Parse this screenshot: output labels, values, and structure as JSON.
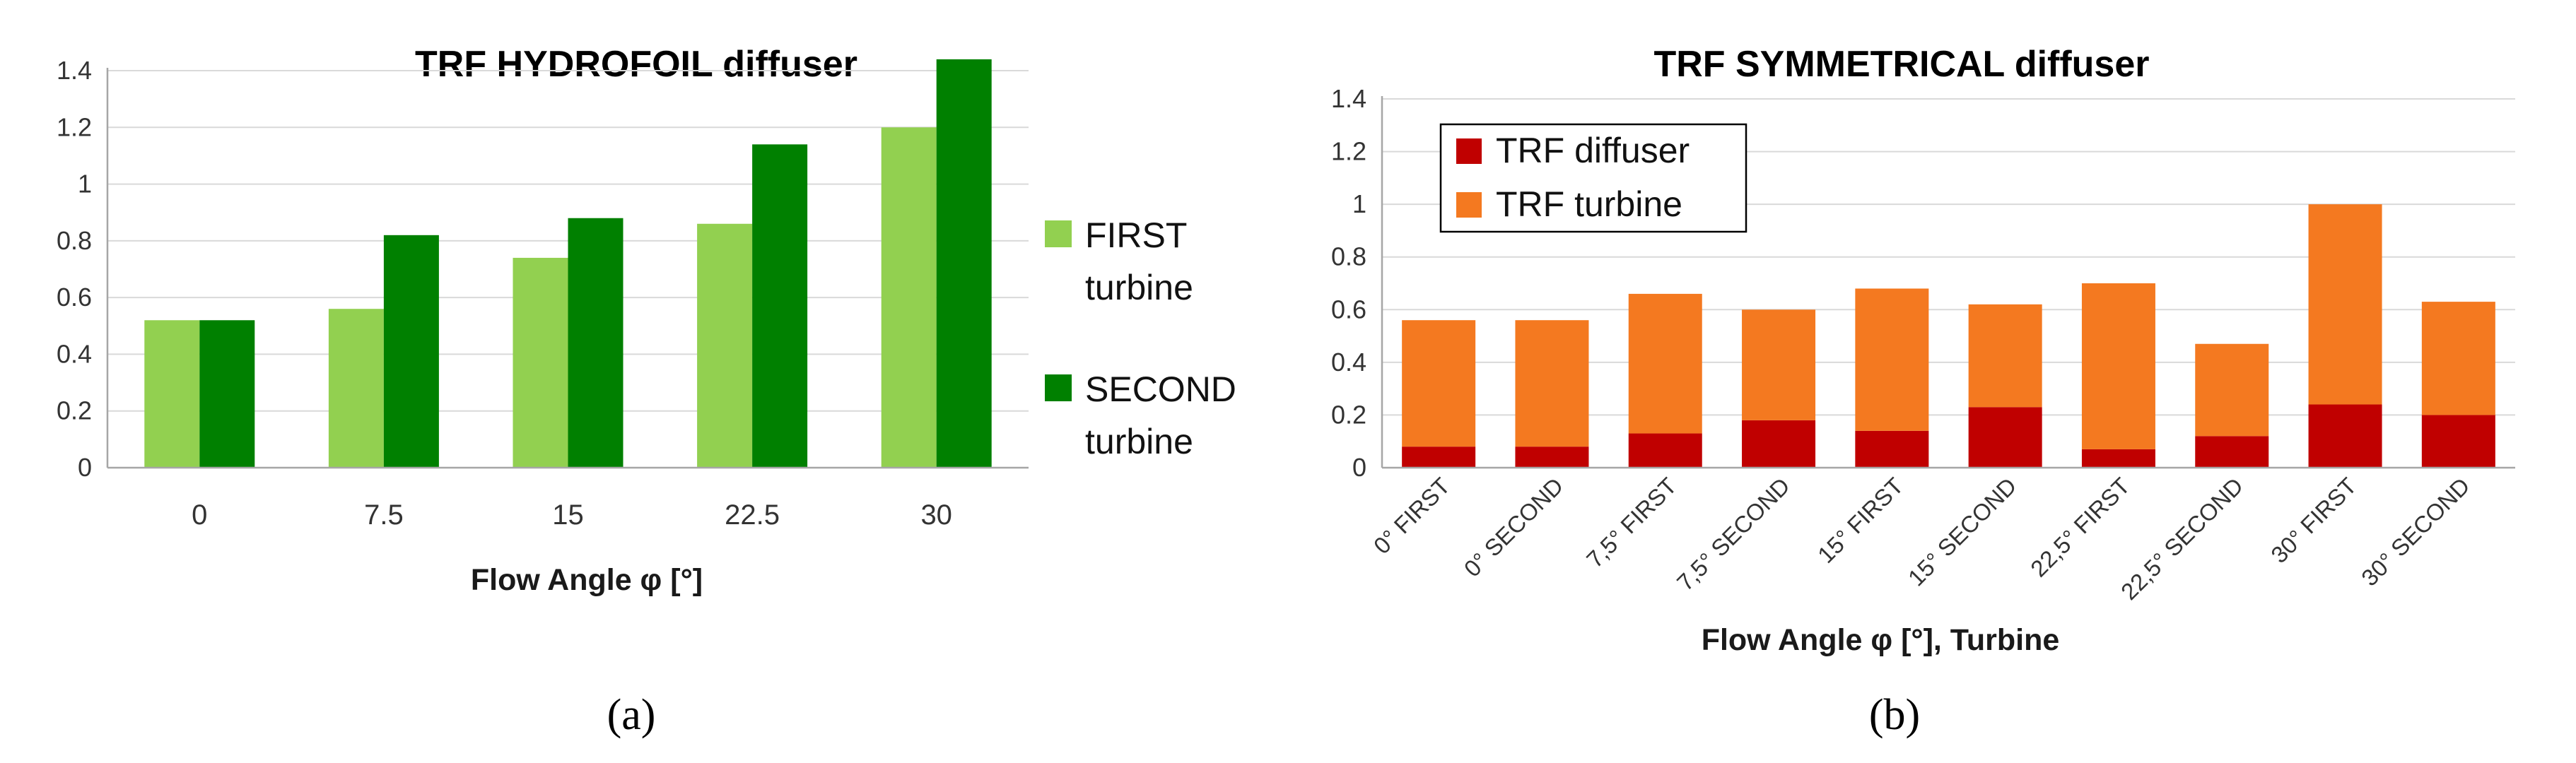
{
  "panels": [
    {
      "label": "(a)"
    },
    {
      "label": "(b)"
    }
  ],
  "chart_data": [
    {
      "type": "bar",
      "title": "TRF HYDROFOIL diffuser",
      "xlabel": "Flow Angle φ [°]",
      "ylabel": "",
      "ylim": [
        0,
        1.4
      ],
      "yticks": [
        "0",
        "0.2",
        "0.4",
        "0.6",
        "0.8",
        "1",
        "1.2",
        "1.4"
      ],
      "categories": [
        "0",
        "7.5",
        "15",
        "22.5",
        "30"
      ],
      "legend_position": "right",
      "series": [
        {
          "name": "FIRST turbine",
          "legend_lines": [
            "FIRST",
            "turbine"
          ],
          "color": "#92d050",
          "values": [
            0.52,
            0.56,
            0.74,
            0.86,
            1.2
          ]
        },
        {
          "name": "SECOND turbine",
          "legend_lines": [
            "SECOND",
            "turbine"
          ],
          "color": "#008000",
          "values": [
            0.52,
            0.82,
            0.88,
            1.14,
            1.44
          ]
        }
      ]
    },
    {
      "type": "bar",
      "stacked": true,
      "title": "TRF SYMMETRICAL diffuser",
      "xlabel": "Flow Angle φ [°], Turbine",
      "ylabel": "",
      "ylim": [
        0,
        1.4
      ],
      "yticks": [
        "0",
        "0.2",
        "0.4",
        "0.6",
        "0.8",
        "1",
        "1.2",
        "1.4"
      ],
      "categories": [
        "0° FIRST",
        "0° SECOND",
        "7,5° FIRST",
        "7,5° SECOND",
        "15° FIRST",
        "15° SECOND",
        "22,5° FIRST",
        "22,5° SECOND",
        "30° FIRST",
        "30° SECOND"
      ],
      "legend_position": "top-left",
      "series": [
        {
          "name": "TRF diffuser",
          "color": "#c00000",
          "values": [
            0.08,
            0.08,
            0.13,
            0.18,
            0.14,
            0.23,
            0.07,
            0.12,
            0.24,
            0.2
          ]
        },
        {
          "name": "TRF turbine",
          "color": "#f47920",
          "values": [
            0.48,
            0.48,
            0.53,
            0.42,
            0.54,
            0.39,
            0.63,
            0.35,
            0.76,
            0.43
          ]
        }
      ]
    }
  ]
}
